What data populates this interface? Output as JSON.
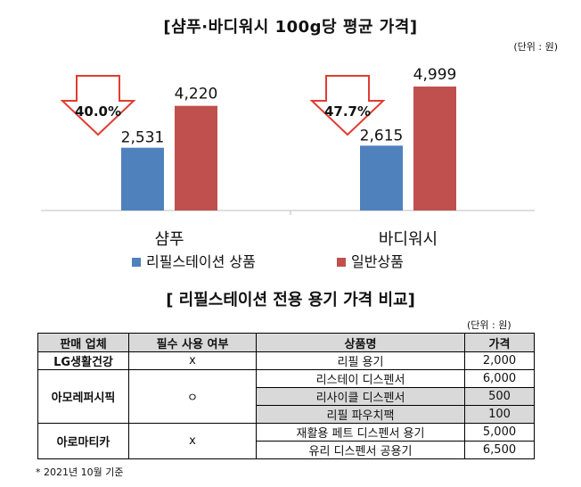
{
  "title": "[샴푸·바디워시 100g당 평균 가격]",
  "unit": "(단위 : 원)",
  "chart_data": {
    "type": "bar",
    "categories": [
      "샴푸",
      "바디워시"
    ],
    "series": [
      {
        "name": "리필스테이션 상품",
        "values": [
          2531,
          2615
        ],
        "labels": [
          "2,531",
          "2,615"
        ],
        "color": "#4f81bd"
      },
      {
        "name": "일반상품",
        "values": [
          4220,
          4999
        ],
        "labels": [
          "4,220",
          "4,999"
        ],
        "color": "#c0504d"
      }
    ],
    "discounts": [
      "40.0%",
      "47.7%"
    ],
    "ylim": [
      0,
      5000
    ],
    "legend_position": "bottom",
    "grid": false
  },
  "table_title": "[ 리필스테이션 전용 용기 가격 비교]",
  "table_unit": "(단위 : 원)",
  "table": {
    "headers": [
      "판매 업체",
      "필수 사용 여부",
      "상품명",
      "가격"
    ],
    "groups": [
      {
        "company": "LG생활건강",
        "required": "x",
        "items": [
          {
            "name": "리필 용기",
            "price": "2,000"
          }
        ]
      },
      {
        "company": "아모레퍼시픽",
        "required": "ㅇ",
        "items": [
          {
            "name": "리스테이 디스펜서",
            "price": "6,000"
          },
          {
            "name": "리사이클 디스펜서",
            "price": "500"
          },
          {
            "name": "리필 파우치팩",
            "price": "100"
          }
        ]
      },
      {
        "company": "아로마티카",
        "required": "x",
        "items": [
          {
            "name": "재활용 페트 디스펜서 용기",
            "price": "5,000"
          },
          {
            "name": "유리 디스펜서 공용기",
            "price": "6,500"
          }
        ]
      }
    ]
  },
  "footnote": "* 2021년 10월 기준"
}
